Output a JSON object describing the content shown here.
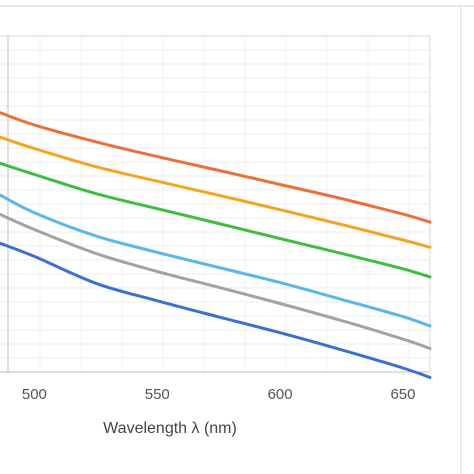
{
  "chart_data": {
    "type": "line",
    "xlabel": "Wavelength λ (nm)",
    "ylabel": "",
    "title": "",
    "x_ticks": [
      500,
      550,
      600,
      650
    ],
    "xlim": [
      486,
      661
    ],
    "ylim": [
      0,
      1
    ],
    "grid": true,
    "legend": "none",
    "series": [
      {
        "color": "#E8703A",
        "x": [
          486,
          500,
          525,
          550,
          575,
          600,
          625,
          650,
          661
        ],
        "y": [
          0.772,
          0.735,
          0.685,
          0.641,
          0.6,
          0.558,
          0.516,
          0.47,
          0.446
        ]
      },
      {
        "color": "#F2A524",
        "x": [
          486,
          500,
          525,
          550,
          575,
          600,
          625,
          650,
          661
        ],
        "y": [
          0.699,
          0.665,
          0.611,
          0.568,
          0.526,
          0.483,
          0.439,
          0.393,
          0.371
        ]
      },
      {
        "color": "#3DBE3F",
        "x": [
          486,
          500,
          525,
          550,
          575,
          600,
          625,
          650,
          661
        ],
        "y": [
          0.621,
          0.588,
          0.531,
          0.486,
          0.442,
          0.397,
          0.353,
          0.307,
          0.283
        ]
      },
      {
        "color": "#5BB7E5",
        "x": [
          486,
          500,
          525,
          550,
          575,
          600,
          625,
          650,
          661
        ],
        "y": [
          0.527,
          0.474,
          0.405,
          0.356,
          0.311,
          0.266,
          0.216,
          0.165,
          0.137
        ]
      },
      {
        "color": "#A3A3A3",
        "x": [
          486,
          500,
          525,
          550,
          575,
          600,
          625,
          650,
          661
        ],
        "y": [
          0.469,
          0.424,
          0.353,
          0.299,
          0.252,
          0.204,
          0.153,
          0.098,
          0.07
        ]
      },
      {
        "color": "#3C6FD4",
        "x": [
          486,
          500,
          525,
          550,
          575,
          600,
          625,
          650,
          661
        ],
        "y": [
          0.383,
          0.344,
          0.264,
          0.212,
          0.164,
          0.117,
          0.066,
          0.012,
          -0.016
        ]
      }
    ]
  }
}
